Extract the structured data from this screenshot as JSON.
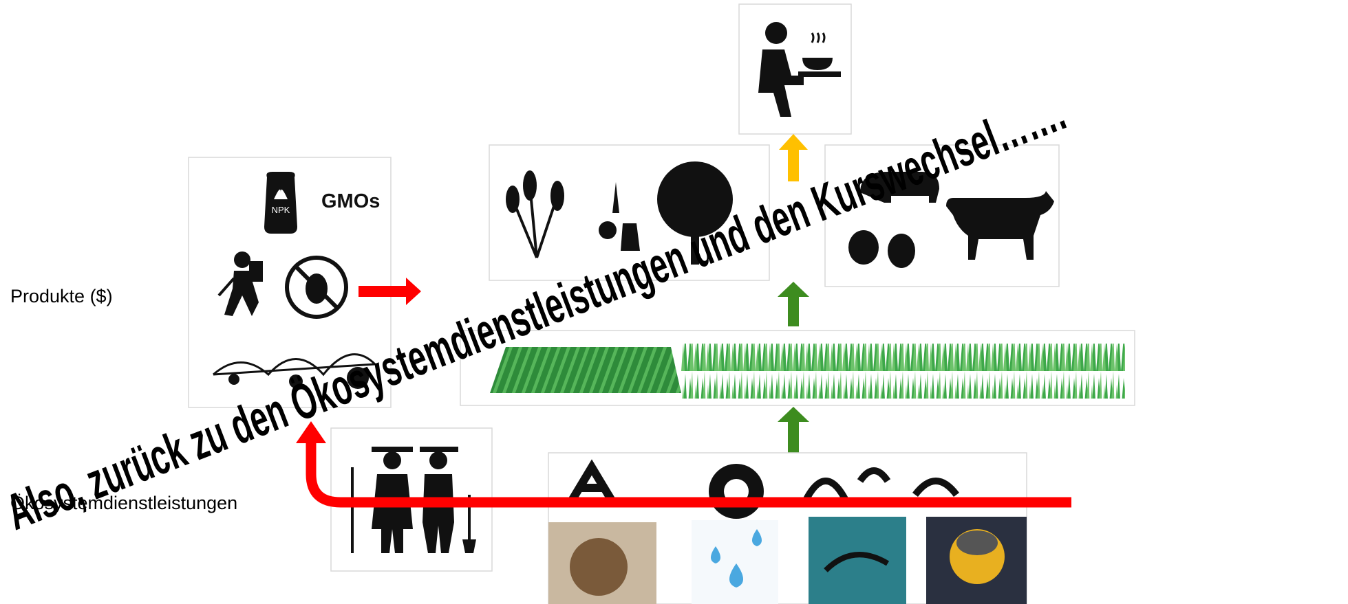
{
  "labels": {
    "products": "Produkte ($)",
    "ecosystem_services": "Ökosystemdienstleistungen"
  },
  "inputs": {
    "fertilizer": "NPK",
    "gmo": "GMOs"
  },
  "banner": "Also, zurück zu den Ökosystemdienstleistungen und den Kurswechsel……."
}
